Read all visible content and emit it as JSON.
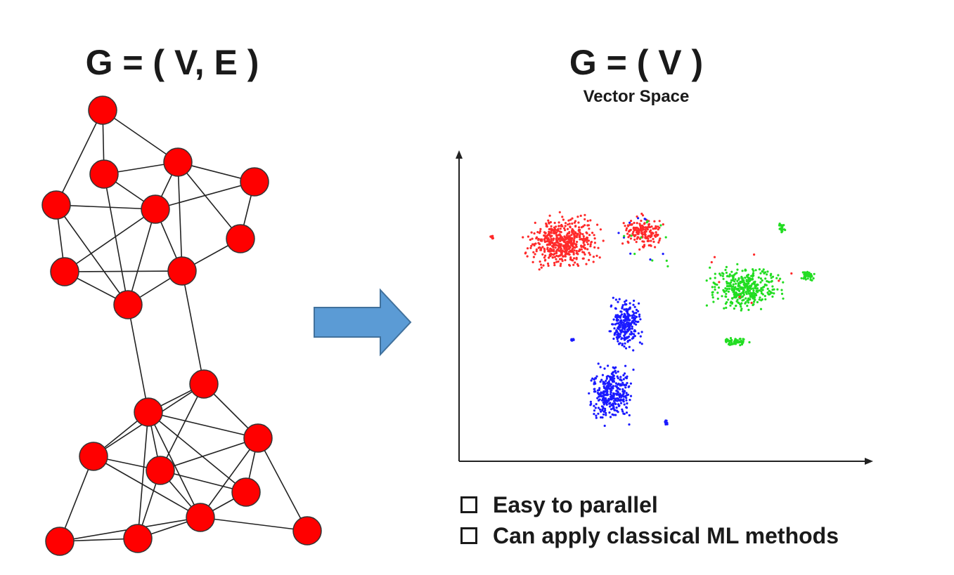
{
  "left_panel": {
    "title": "G = ( V, E )"
  },
  "right_panel": {
    "title": "G = ( V )",
    "subtitle": "Vector Space"
  },
  "bullets": [
    {
      "label": "Easy to parallel"
    },
    {
      "label": "Can apply classical ML methods"
    }
  ],
  "colors": {
    "node_fill": "#ff0000",
    "edge": "#222222",
    "arrow_fill": "#5b9bd5",
    "arrow_stroke": "#41719c",
    "cluster_red": "#ff2a2a",
    "cluster_green": "#22dd22",
    "cluster_blue": "#1a1aff"
  }
}
